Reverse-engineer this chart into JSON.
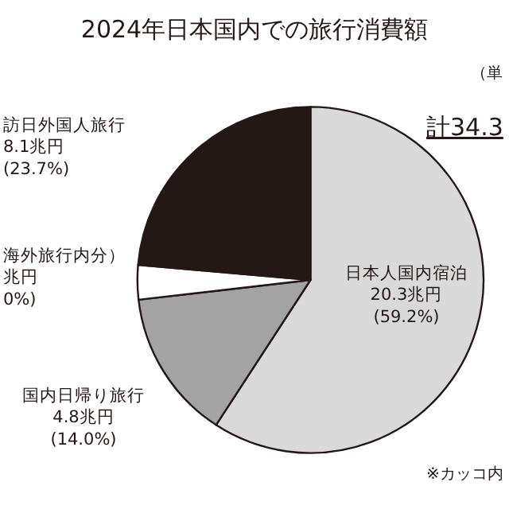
{
  "chart_data": {
    "type": "pie",
    "title": "2024年日本国内での旅行消費額",
    "categories": [
      "日本人国内宿泊",
      "国内日帰り旅行",
      "海外旅行内分）",
      "訪日外国人旅行"
    ],
    "values": [
      20.3,
      4.8,
      1.1,
      8.1
    ],
    "value_labels": [
      "20.3兆円\n(59.2%)",
      "4.8兆円\n(14.0%)",
      "兆円\n0%)",
      "8.1兆円\n(23.7%)"
    ],
    "colors": [
      "#d9d9d9",
      "#a3a3a3",
      "#ffffff",
      "#231815"
    ],
    "annotations": [
      "（単",
      "計34.3",
      "※カッコ内"
    ],
    "legend": false
  }
}
